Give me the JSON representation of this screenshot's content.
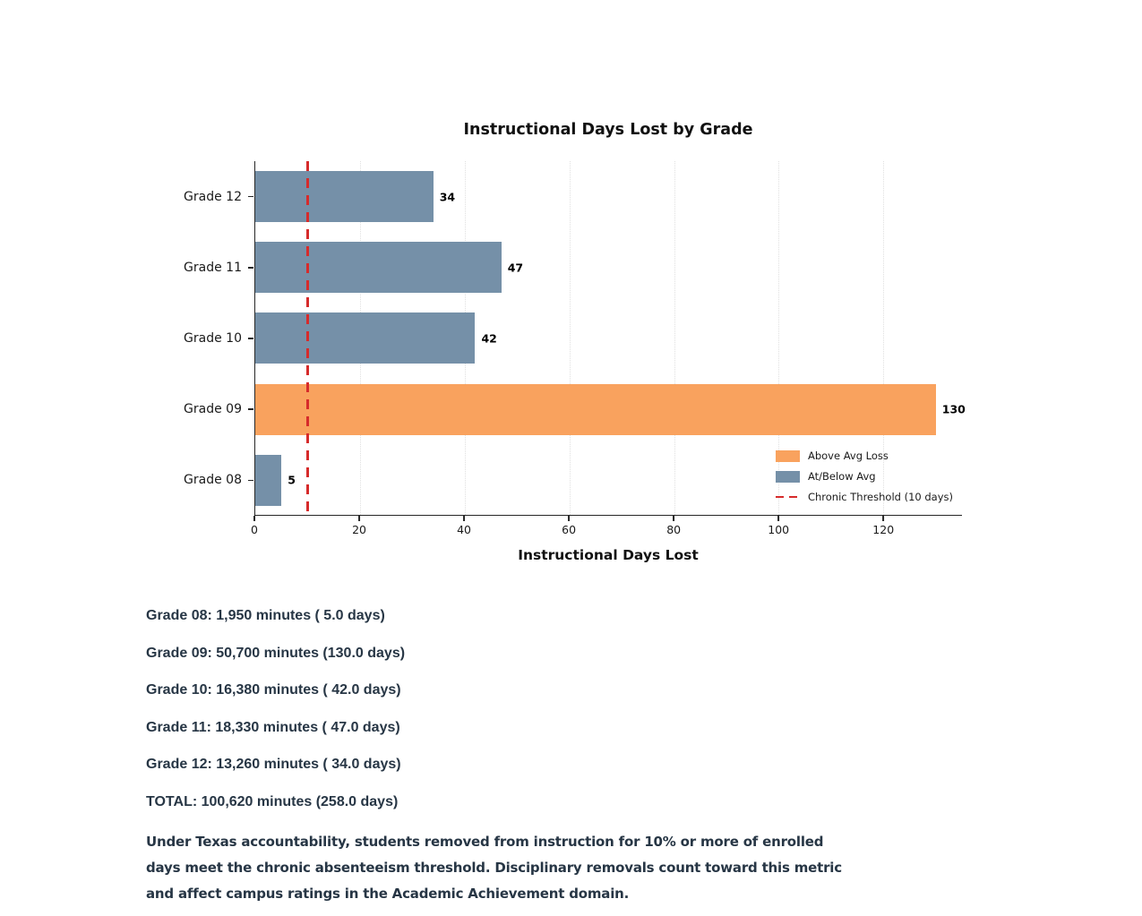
{
  "chart_data": {
    "type": "bar",
    "orientation": "horizontal",
    "title": "Instructional Days Lost by Grade",
    "xlabel": "Instructional Days Lost",
    "categories": [
      "Grade 12",
      "Grade 11",
      "Grade 10",
      "Grade 09",
      "Grade 08"
    ],
    "values": [
      34,
      47,
      42,
      130,
      5
    ],
    "series_class": [
      "at_below",
      "at_below",
      "at_below",
      "above",
      "at_below"
    ],
    "xlim": [
      0,
      135
    ],
    "xticks": [
      0,
      20,
      40,
      60,
      80,
      100,
      120
    ],
    "grid": "dotted-vertical",
    "threshold": {
      "value": 10,
      "label": "Chronic Threshold (10 days)"
    },
    "legend": {
      "position": "lower-right",
      "items": [
        {
          "label": "Above Avg Loss",
          "swatch": "rect",
          "color": "#F9A25E"
        },
        {
          "label": "At/Below Avg",
          "swatch": "rect",
          "color": "#7590A8"
        },
        {
          "label": "Chronic Threshold (10 days)",
          "swatch": "dashed-line",
          "color": "#D62B2B"
        }
      ]
    },
    "colors": {
      "above_avg": "#F9A25E",
      "at_below_avg": "#7590A8",
      "threshold": "#D62B2B",
      "grid": "#e0e0e0"
    }
  },
  "summary": {
    "lines": [
      "Grade 08: 1,950 minutes ( 5.0 days)",
      "Grade 09: 50,700 minutes (130.0 days)",
      "Grade 10: 16,380 minutes ( 42.0 days)",
      "Grade 11: 18,330 minutes ( 47.0 days)",
      "Grade 12: 13,260 minutes ( 34.0 days)",
      "TOTAL: 100,620 minutes (258.0 days)"
    ]
  },
  "footnote": {
    "lines": [
      "Under Texas accountability, students removed from instruction for 10% or more of enrolled",
      "days meet the chronic absenteeism threshold. Disciplinary removals count toward this metric",
      "and affect campus ratings in the Academic Achievement domain."
    ]
  }
}
